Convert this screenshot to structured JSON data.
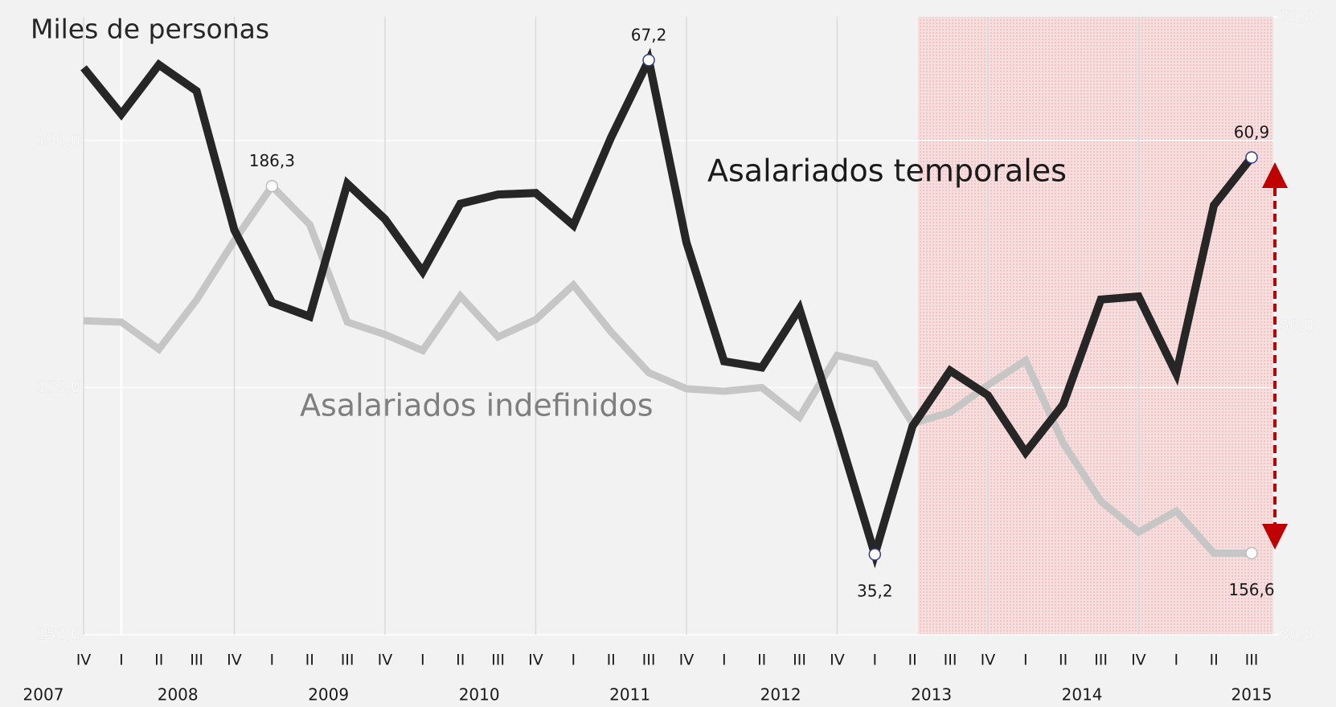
{
  "chart_data": {
    "type": "line",
    "y_axis_label": "Miles de personas",
    "annotations": [
      "Asalariados temporales",
      "Asalariados indefinidos"
    ],
    "categories": [
      "IV",
      "I",
      "II",
      "III",
      "IV",
      "I",
      "II",
      "III",
      "IV",
      "I",
      "II",
      "III",
      "IV",
      "I",
      "II",
      "III",
      "IV",
      "I",
      "II",
      "III",
      "IV",
      "I",
      "II",
      "III",
      "IV",
      "I",
      "II",
      "III",
      "IV",
      "I",
      "II",
      "III"
    ],
    "years": [
      "2007",
      "2008",
      "2009",
      "2010",
      "2011",
      "2012",
      "2013",
      "2014",
      "2015"
    ],
    "ylim": [
      150,
      200
    ],
    "yticks": [
      {
        "value": 150,
        "label": "150,0"
      },
      {
        "value": 170,
        "label": "170,0"
      },
      {
        "value": 190,
        "label": "190,0"
      }
    ],
    "y2lim": [
      30,
      70
    ],
    "y2ticks": [
      {
        "value": 30,
        "label": "30,0"
      },
      {
        "value": 50,
        "label": "50,0"
      },
      {
        "value": 70,
        "label": "70,0"
      }
    ],
    "grid": true,
    "series": [
      {
        "name": "Asalariados indefinidos",
        "color": "#c6c6c6",
        "axis": "y",
        "values": [
          175.4,
          175.3,
          173.1,
          177.1,
          181.9,
          186.3,
          183.2,
          175.3,
          174.3,
          173.0,
          177.4,
          174.1,
          175.5,
          178.3,
          174.5,
          171.2,
          169.9,
          169.7,
          170.0,
          167.6,
          172.6,
          171.9,
          167.1,
          168.0,
          170.2,
          172.2,
          165.5,
          160.8,
          158.3,
          160.0,
          156.6,
          156.6
        ],
        "value_labels": [
          null,
          null,
          null,
          null,
          null,
          "186,3",
          null,
          null,
          null,
          null,
          null,
          null,
          null,
          null,
          null,
          null,
          null,
          null,
          null,
          null,
          null,
          null,
          null,
          null,
          null,
          null,
          null,
          null,
          null,
          null,
          null,
          "156,6"
        ]
      },
      {
        "name": "Asalariados temporales",
        "color": "#262626",
        "axis": "y2",
        "values": [
          66.7,
          63.7,
          66.9,
          65.2,
          56.2,
          51.5,
          50.6,
          59.2,
          56.9,
          53.5,
          57.9,
          58.5,
          58.6,
          56.5,
          62.2,
          67.2,
          55.4,
          47.7,
          47.3,
          51.1,
          43.3,
          35.2,
          43.5,
          47.1,
          45.5,
          41.8,
          44.9,
          51.7,
          51.9,
          46.9,
          57.8,
          60.9
        ],
        "value_labels": [
          null,
          null,
          null,
          null,
          null,
          null,
          null,
          null,
          null,
          null,
          null,
          null,
          null,
          null,
          null,
          "67,2",
          null,
          null,
          null,
          null,
          null,
          "35,2",
          null,
          null,
          null,
          null,
          null,
          null,
          null,
          null,
          null,
          "60,9"
        ]
      }
    ]
  }
}
